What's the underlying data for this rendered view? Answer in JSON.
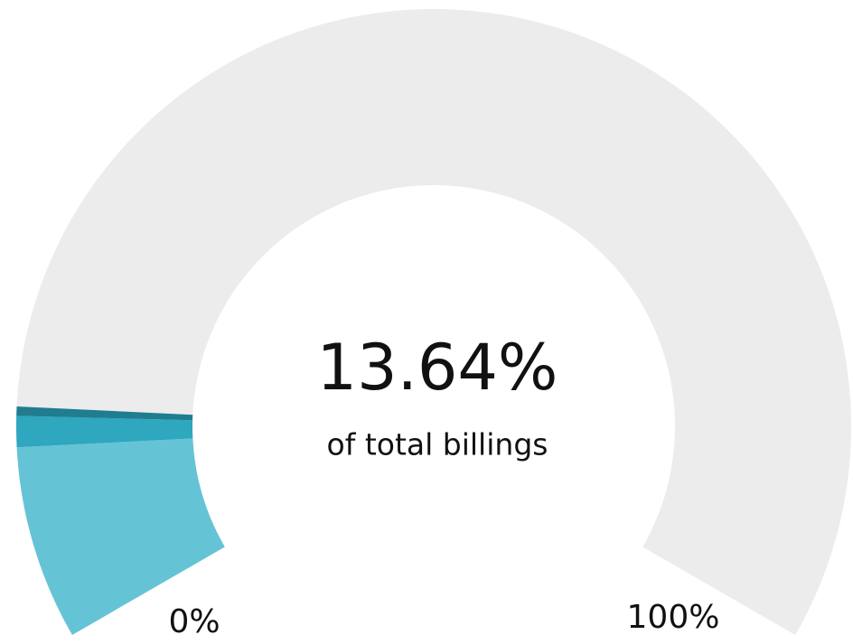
{
  "chart_data": {
    "type": "gauge",
    "values": [
      11.3,
      1.8,
      0.54
    ],
    "colors": [
      "#65c3d6",
      "#2ea7bf",
      "#1f7d8f"
    ],
    "track_color": "#ececec",
    "ylim": [
      0,
      100
    ],
    "yticks": [
      {
        "value": 0,
        "label": "0%"
      },
      {
        "value": 100,
        "label": "100%"
      }
    ],
    "center_value": {
      "value": 13.64,
      "label": "13.64%"
    },
    "center_caption": "of total billings"
  }
}
